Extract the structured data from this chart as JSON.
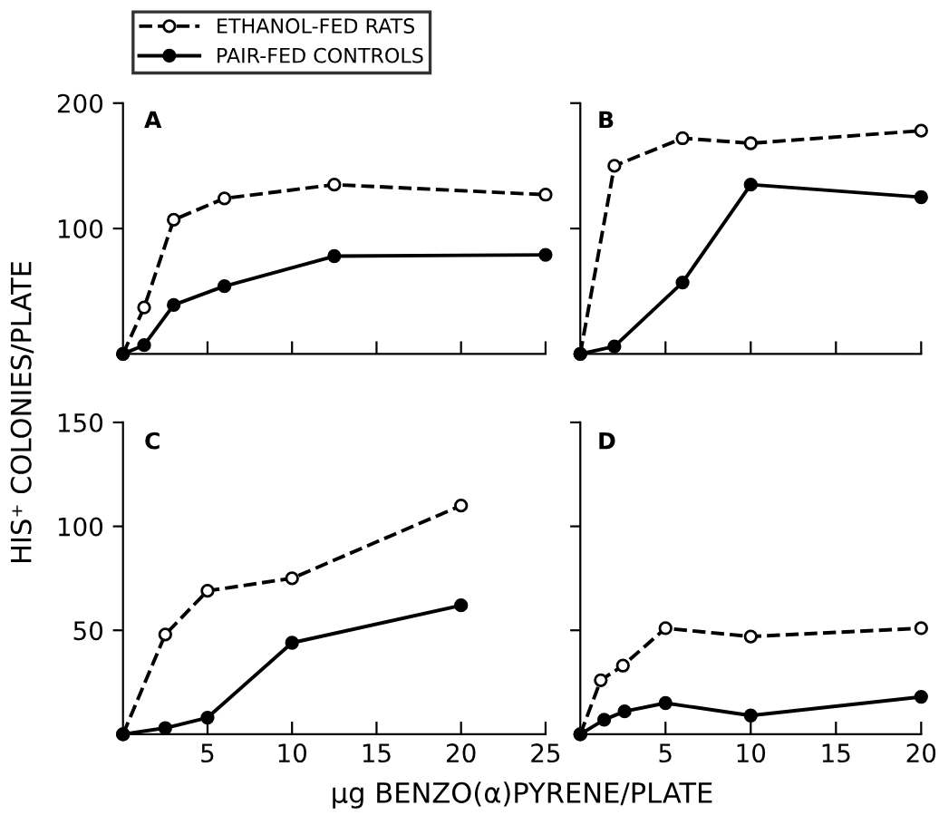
{
  "chart_data": [
    {
      "type": "line",
      "title": "A",
      "legend": "top left",
      "marker": "circle",
      "tick_labels": "y",
      "xlim": [
        0,
        25
      ],
      "xticks": [
        {
          "value": 5,
          "label": null
        },
        {
          "value": 10,
          "label": null
        },
        {
          "value": 15,
          "label": null
        },
        {
          "value": 20,
          "label": null
        },
        {
          "value": 25,
          "label": null
        }
      ],
      "ylim": [
        0,
        200
      ],
      "yticks": [
        100,
        200
      ],
      "series": [
        {
          "name": "ETHANOL-FED RATS",
          "color": "#000000",
          "line_style": "dashed",
          "x": [
            0,
            1.25,
            3,
            6,
            12.5,
            25
          ],
          "values": [
            0,
            37,
            107,
            124,
            135,
            127
          ]
        },
        {
          "name": "PAIR-FED CONTROLS",
          "color": "#000000",
          "line_style": "solid",
          "x": [
            0,
            1.25,
            3,
            6,
            12.5,
            25
          ],
          "values": [
            0,
            7,
            39,
            54,
            78,
            79
          ]
        }
      ]
    },
    {
      "type": "line",
      "title": "B",
      "marker": "circle",
      "tick_labels": false,
      "xlim": [
        0,
        20
      ],
      "xticks": [
        {
          "value": 5,
          "label": null
        },
        {
          "value": 10,
          "label": null
        },
        {
          "value": 15,
          "label": null
        },
        {
          "value": 20,
          "label": null
        }
      ],
      "ylim": [
        0,
        200
      ],
      "yticks": [
        {
          "value": 100,
          "label": null
        },
        {
          "value": 200,
          "label": null
        }
      ],
      "series": [
        {
          "color": "#000000",
          "line_style": "dashed",
          "x": [
            0,
            2,
            6,
            10,
            20
          ],
          "values": [
            0,
            150,
            172,
            168,
            178
          ]
        },
        {
          "color": "#000000",
          "line_style": "solid",
          "x": [
            0,
            2,
            6,
            10,
            20
          ],
          "values": [
            0,
            6,
            57,
            135,
            125
          ]
        }
      ]
    },
    {
      "type": "line",
      "title": "C",
      "marker": "circle",
      "ylabel": "HIS⁺ COLONIES/PLATE",
      "xlim": [
        0,
        25
      ],
      "xticks": [
        5,
        10,
        15,
        20,
        25
      ],
      "ylim": [
        0,
        150
      ],
      "yticks": [
        50,
        100,
        150
      ],
      "series": [
        {
          "color": "#000000",
          "line_style": "dashed",
          "x": [
            0,
            2.5,
            5,
            10,
            20
          ],
          "values": [
            0,
            48,
            69,
            75,
            110
          ]
        },
        {
          "color": "#000000",
          "line_style": "solid",
          "x": [
            0,
            2.5,
            5,
            10,
            20
          ],
          "values": [
            0,
            3,
            8,
            44,
            62
          ]
        }
      ]
    },
    {
      "type": "line",
      "title": "D",
      "marker": "circle",
      "tick_labels": "x",
      "xlabel": "μg BENZO(α)PYRENE/PLATE",
      "xlim": [
        0,
        20
      ],
      "xticks": [
        5,
        10,
        15,
        20
      ],
      "ylim": [
        0,
        150
      ],
      "yticks": [
        {
          "value": 50,
          "label": null
        },
        {
          "value": 100,
          "label": null
        },
        {
          "value": 150,
          "label": null
        }
      ],
      "series": [
        {
          "color": "#000000",
          "line_style": "dashed",
          "x": [
            0,
            1.2,
            2.5,
            5,
            10,
            20
          ],
          "values": [
            0,
            26,
            33,
            51,
            47,
            51
          ]
        },
        {
          "color": "#000000",
          "line_style": "solid",
          "x": [
            0,
            1.4,
            2.6,
            5,
            10,
            20
          ],
          "values": [
            0,
            7,
            11,
            15,
            9,
            18
          ]
        }
      ]
    }
  ]
}
